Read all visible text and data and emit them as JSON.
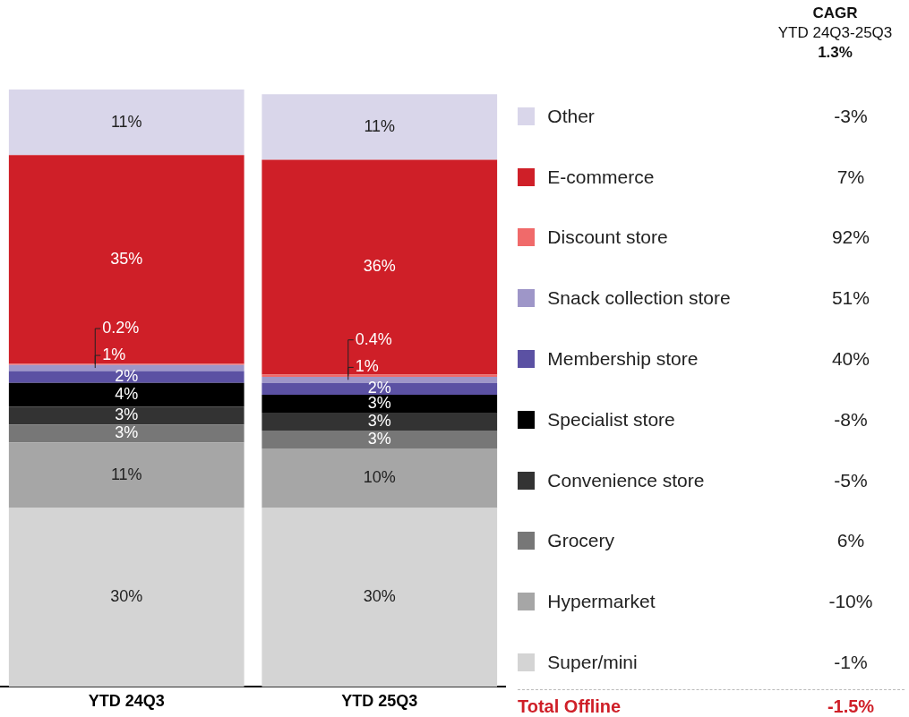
{
  "chart_data": {
    "type": "bar",
    "stacked": true,
    "tick_labels": "x",
    "grid": false,
    "legend": "right",
    "categories": [
      "YTD 24Q3",
      "YTD 25Q3"
    ],
    "series": [
      {
        "name": "Super/mini",
        "color": "#d4d4d4",
        "values": [
          30,
          30
        ],
        "value_labels": [
          "30%",
          "30%"
        ]
      },
      {
        "name": "Hypermarket",
        "color": "#a6a6a6",
        "values": [
          11,
          10
        ],
        "value_labels": [
          "11%",
          "10%"
        ]
      },
      {
        "name": "Grocery",
        "color": "#777777",
        "values": [
          3,
          3
        ],
        "value_labels": [
          "3%",
          "3%"
        ]
      },
      {
        "name": "Convenience store",
        "color": "#333333",
        "values": [
          3,
          3
        ],
        "value_labels": [
          "3%",
          "3%"
        ]
      },
      {
        "name": "Specialist store",
        "color": "#000000",
        "values": [
          4,
          3
        ],
        "value_labels": [
          "4%",
          "3%"
        ]
      },
      {
        "name": "Membership store",
        "color": "#5b51a3",
        "values": [
          2,
          2
        ],
        "value_labels": [
          "2%",
          "2%"
        ]
      },
      {
        "name": "Snack collection store",
        "color": "#9e96c8",
        "values": [
          1,
          1
        ],
        "value_labels": [
          "1%",
          "1%"
        ]
      },
      {
        "name": "Discount store",
        "color": "#f06a6a",
        "values": [
          0.2,
          0.4
        ],
        "value_labels": [
          "0.2%",
          "0.4%"
        ]
      },
      {
        "name": "E-commerce",
        "color": "#cf1f28",
        "values": [
          35,
          36
        ],
        "value_labels": [
          "35%",
          "36%"
        ]
      },
      {
        "name": "Other",
        "color": "#d9d6ea",
        "values": [
          11,
          11
        ],
        "value_labels": [
          "11%",
          "11%"
        ]
      }
    ],
    "annotations": [
      "CAGR",
      "YTD 24Q3-25Q3",
      "1.3%",
      "-3%",
      "7%",
      "92%",
      "51%",
      "40%",
      "-8%",
      "-5%",
      "6%",
      "-10%",
      "-1%",
      "Total Offline",
      "-1.5%"
    ]
  }
}
